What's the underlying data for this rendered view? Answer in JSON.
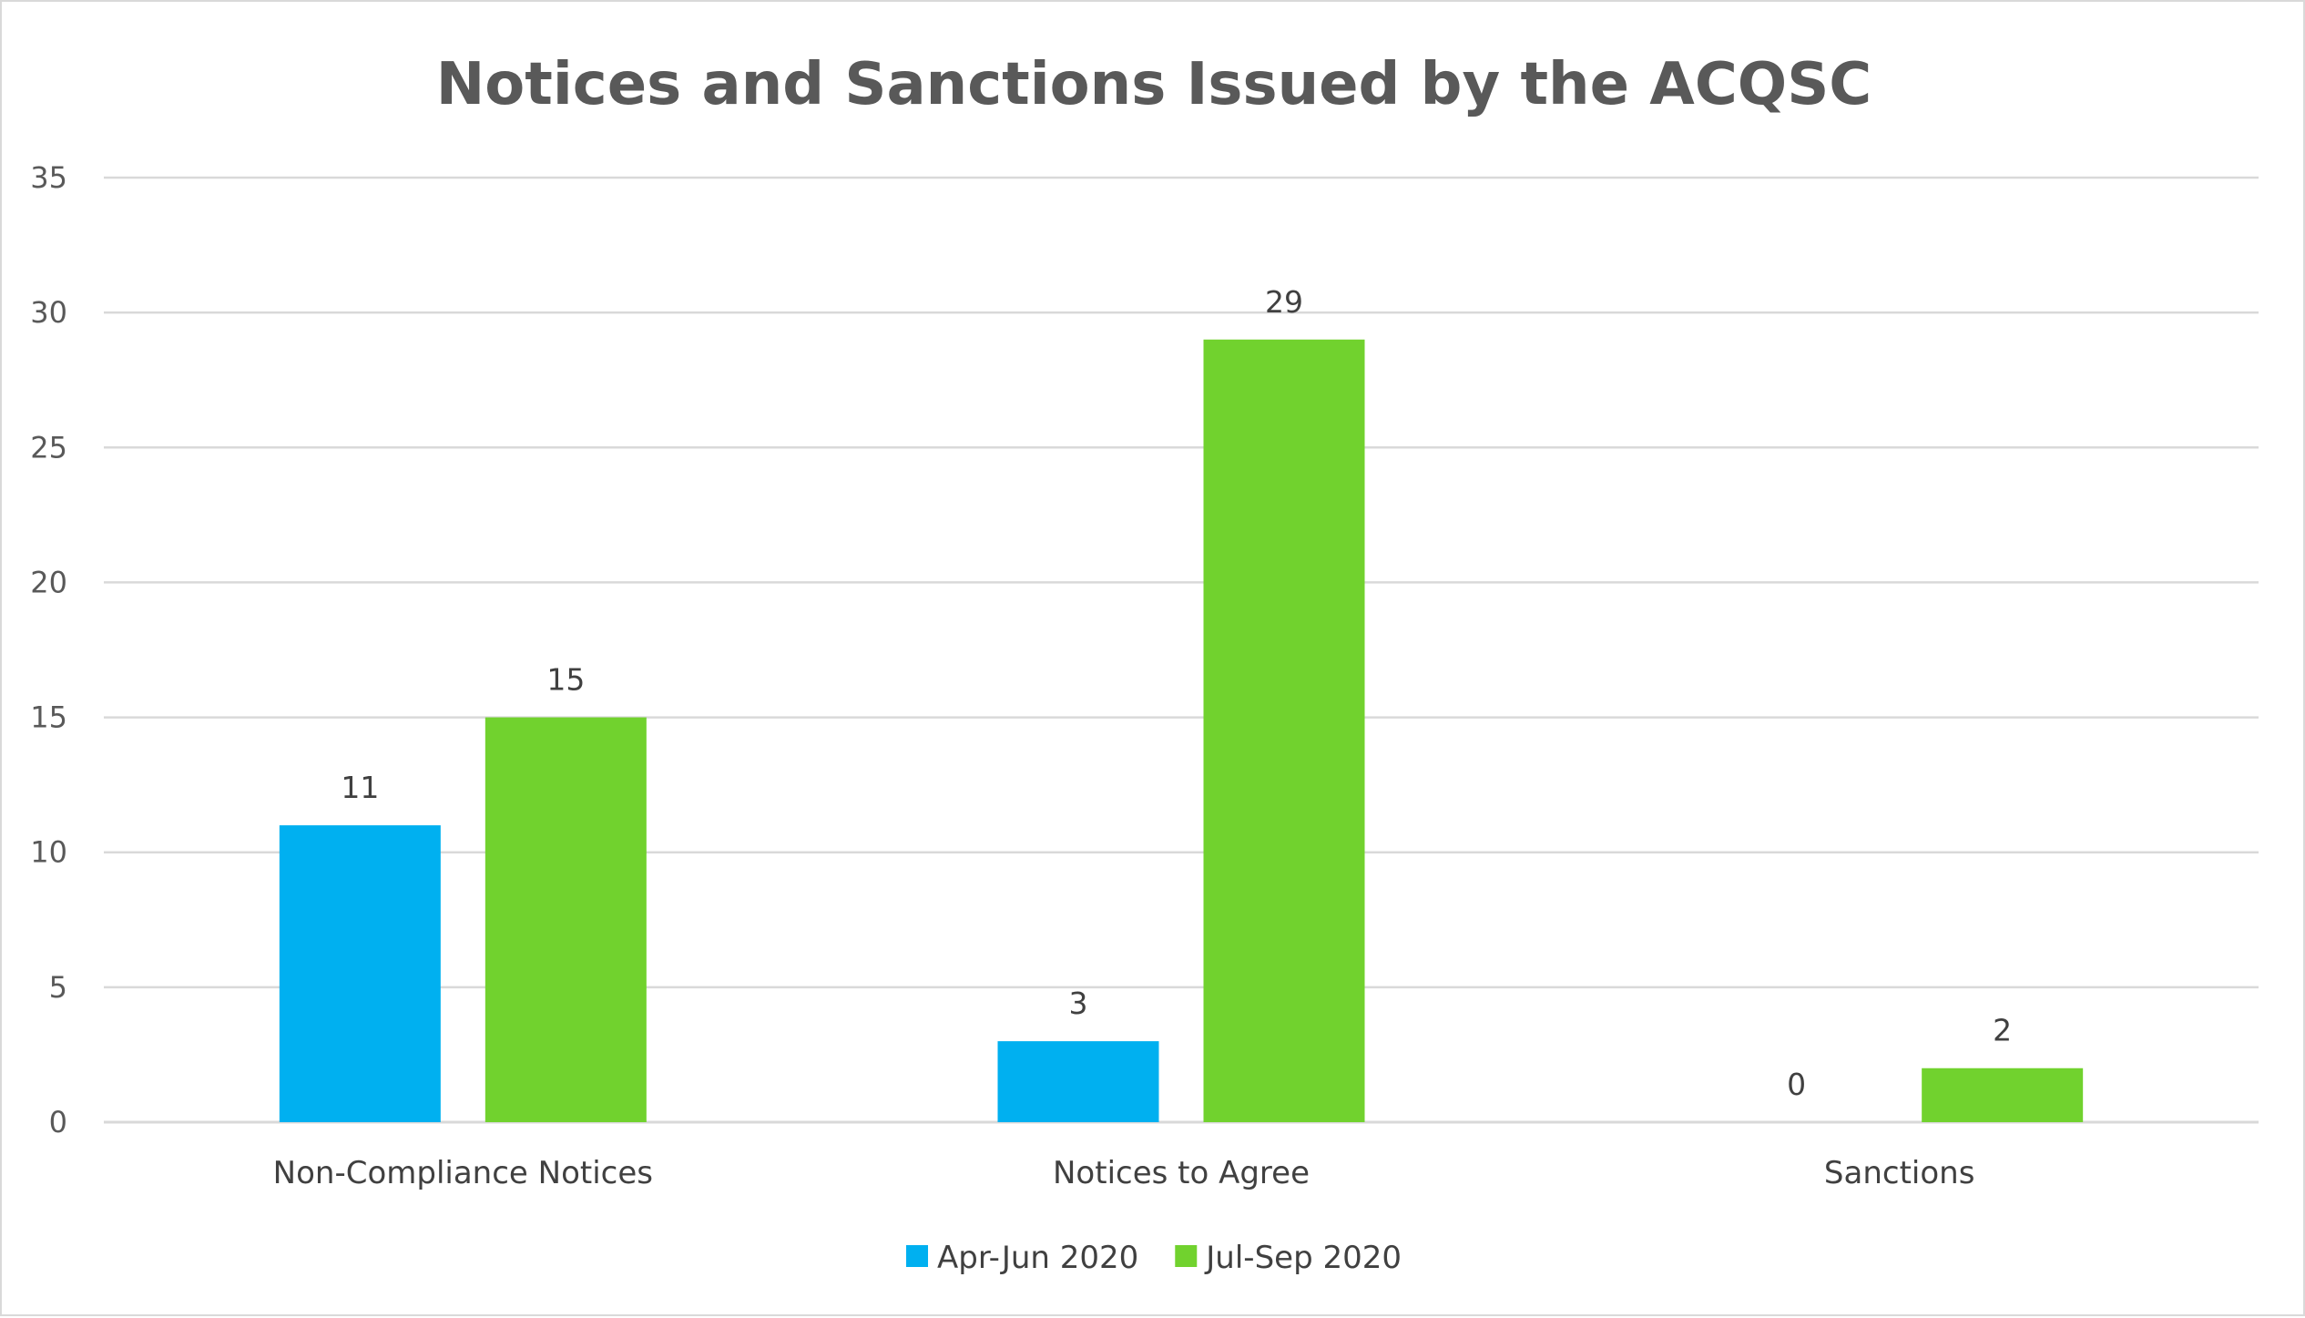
{
  "chart_data": {
    "type": "bar",
    "title": "Notices and Sanctions Issued by the ACQSC",
    "xlabel": "",
    "ylabel": "",
    "categories": [
      "Non-Compliance Notices",
      "Notices to Agree",
      "Sanctions"
    ],
    "series": [
      {
        "name": "Apr-Jun 2020",
        "values": [
          11,
          3,
          0
        ],
        "color": "#00b0f0"
      },
      {
        "name": "Jul-Sep 2020",
        "values": [
          15,
          29,
          2
        ],
        "color": "#71d22e"
      }
    ],
    "ylim": [
      0,
      35
    ],
    "yticks": [
      0,
      5,
      10,
      15,
      20,
      25,
      30,
      35
    ],
    "grid": true,
    "legend_position": "bottom",
    "data_labels": true
  }
}
